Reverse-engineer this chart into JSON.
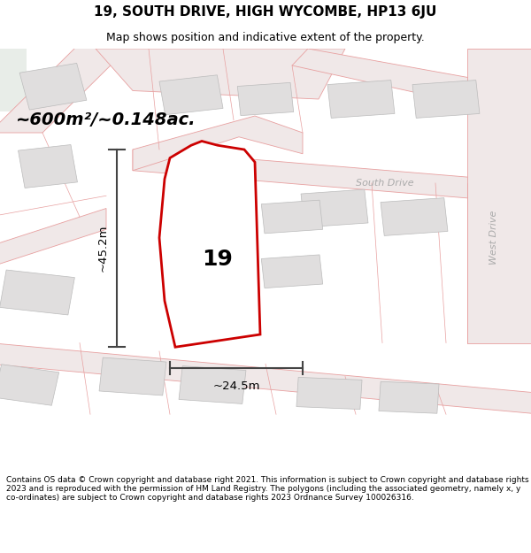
{
  "title": "19, SOUTH DRIVE, HIGH WYCOMBE, HP13 6JU",
  "subtitle": "Map shows position and indicative extent of the property.",
  "footer": "Contains OS data © Crown copyright and database right 2021. This information is subject to Crown copyright and database rights 2023 and is reproduced with the permission of HM Land Registry. The polygons (including the associated geometry, namely x, y co-ordinates) are subject to Crown copyright and database rights 2023 Ordnance Survey 100026316.",
  "area_label": "~600m²/~0.148ac.",
  "number_label": "19",
  "dim_h": "~45.2m",
  "dim_w": "~24.5m",
  "road_label_1": "South Drive",
  "road_label_2": "West Drive",
  "bg_color": "#ffffff",
  "map_bg": "#f5f5f5",
  "road_fill": "#f0e8e8",
  "building_fill": "#e0dede",
  "building_stroke": "#bbbbbb",
  "road_stroke": "#e8a0a0",
  "plot_stroke": "#cc0000",
  "plot_fill": "#ffffff",
  "dim_color": "#444444",
  "text_color": "#000000",
  "road_label_color": "#aaaaaa"
}
